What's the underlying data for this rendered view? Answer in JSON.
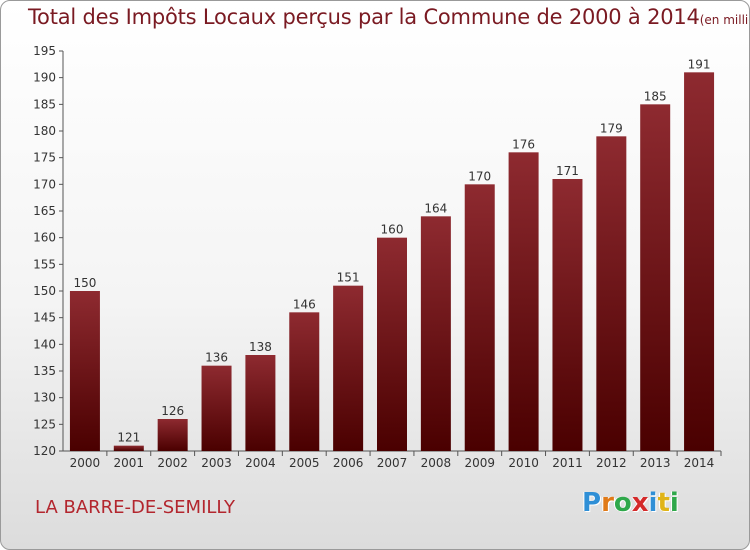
{
  "header": {
    "title_main": "Total des Impôts Locaux perçus par la Commune de 2000 à 2014",
    "title_unit": "(en milliers d'€)"
  },
  "commune_name": "LA BARRE-DE-SEMILLY",
  "logo": {
    "letters": [
      {
        "char": "P",
        "color": "#2f8fd6"
      },
      {
        "char": "r",
        "color": "#e07a18"
      },
      {
        "char": "o",
        "color": "#2fa84a"
      },
      {
        "char": "x",
        "color": "#d42a2a"
      },
      {
        "char": "i",
        "color": "#2f8fd6"
      },
      {
        "char": "t",
        "color": "#e0b418"
      },
      {
        "char": "i",
        "color": "#2fa84a"
      }
    ]
  },
  "chart_data": {
    "type": "bar",
    "title": "Total des Impôts Locaux perçus par la Commune de 2000 à 2014",
    "unit": "(en milliers d'€)",
    "categories": [
      "2000",
      "2001",
      "2002",
      "2003",
      "2004",
      "2005",
      "2006",
      "2007",
      "2008",
      "2009",
      "2010",
      "2011",
      "2012",
      "2013",
      "2014"
    ],
    "values": [
      150,
      121,
      126,
      136,
      138,
      146,
      151,
      160,
      164,
      170,
      176,
      171,
      179,
      185,
      191
    ],
    "ylim": [
      120,
      195
    ],
    "yticks": [
      120,
      125,
      130,
      135,
      140,
      145,
      150,
      155,
      160,
      165,
      170,
      175,
      180,
      185,
      190,
      195
    ],
    "grid": false,
    "bar_color_top": "#8e2a30",
    "bar_color_bottom": "#4a0000"
  }
}
